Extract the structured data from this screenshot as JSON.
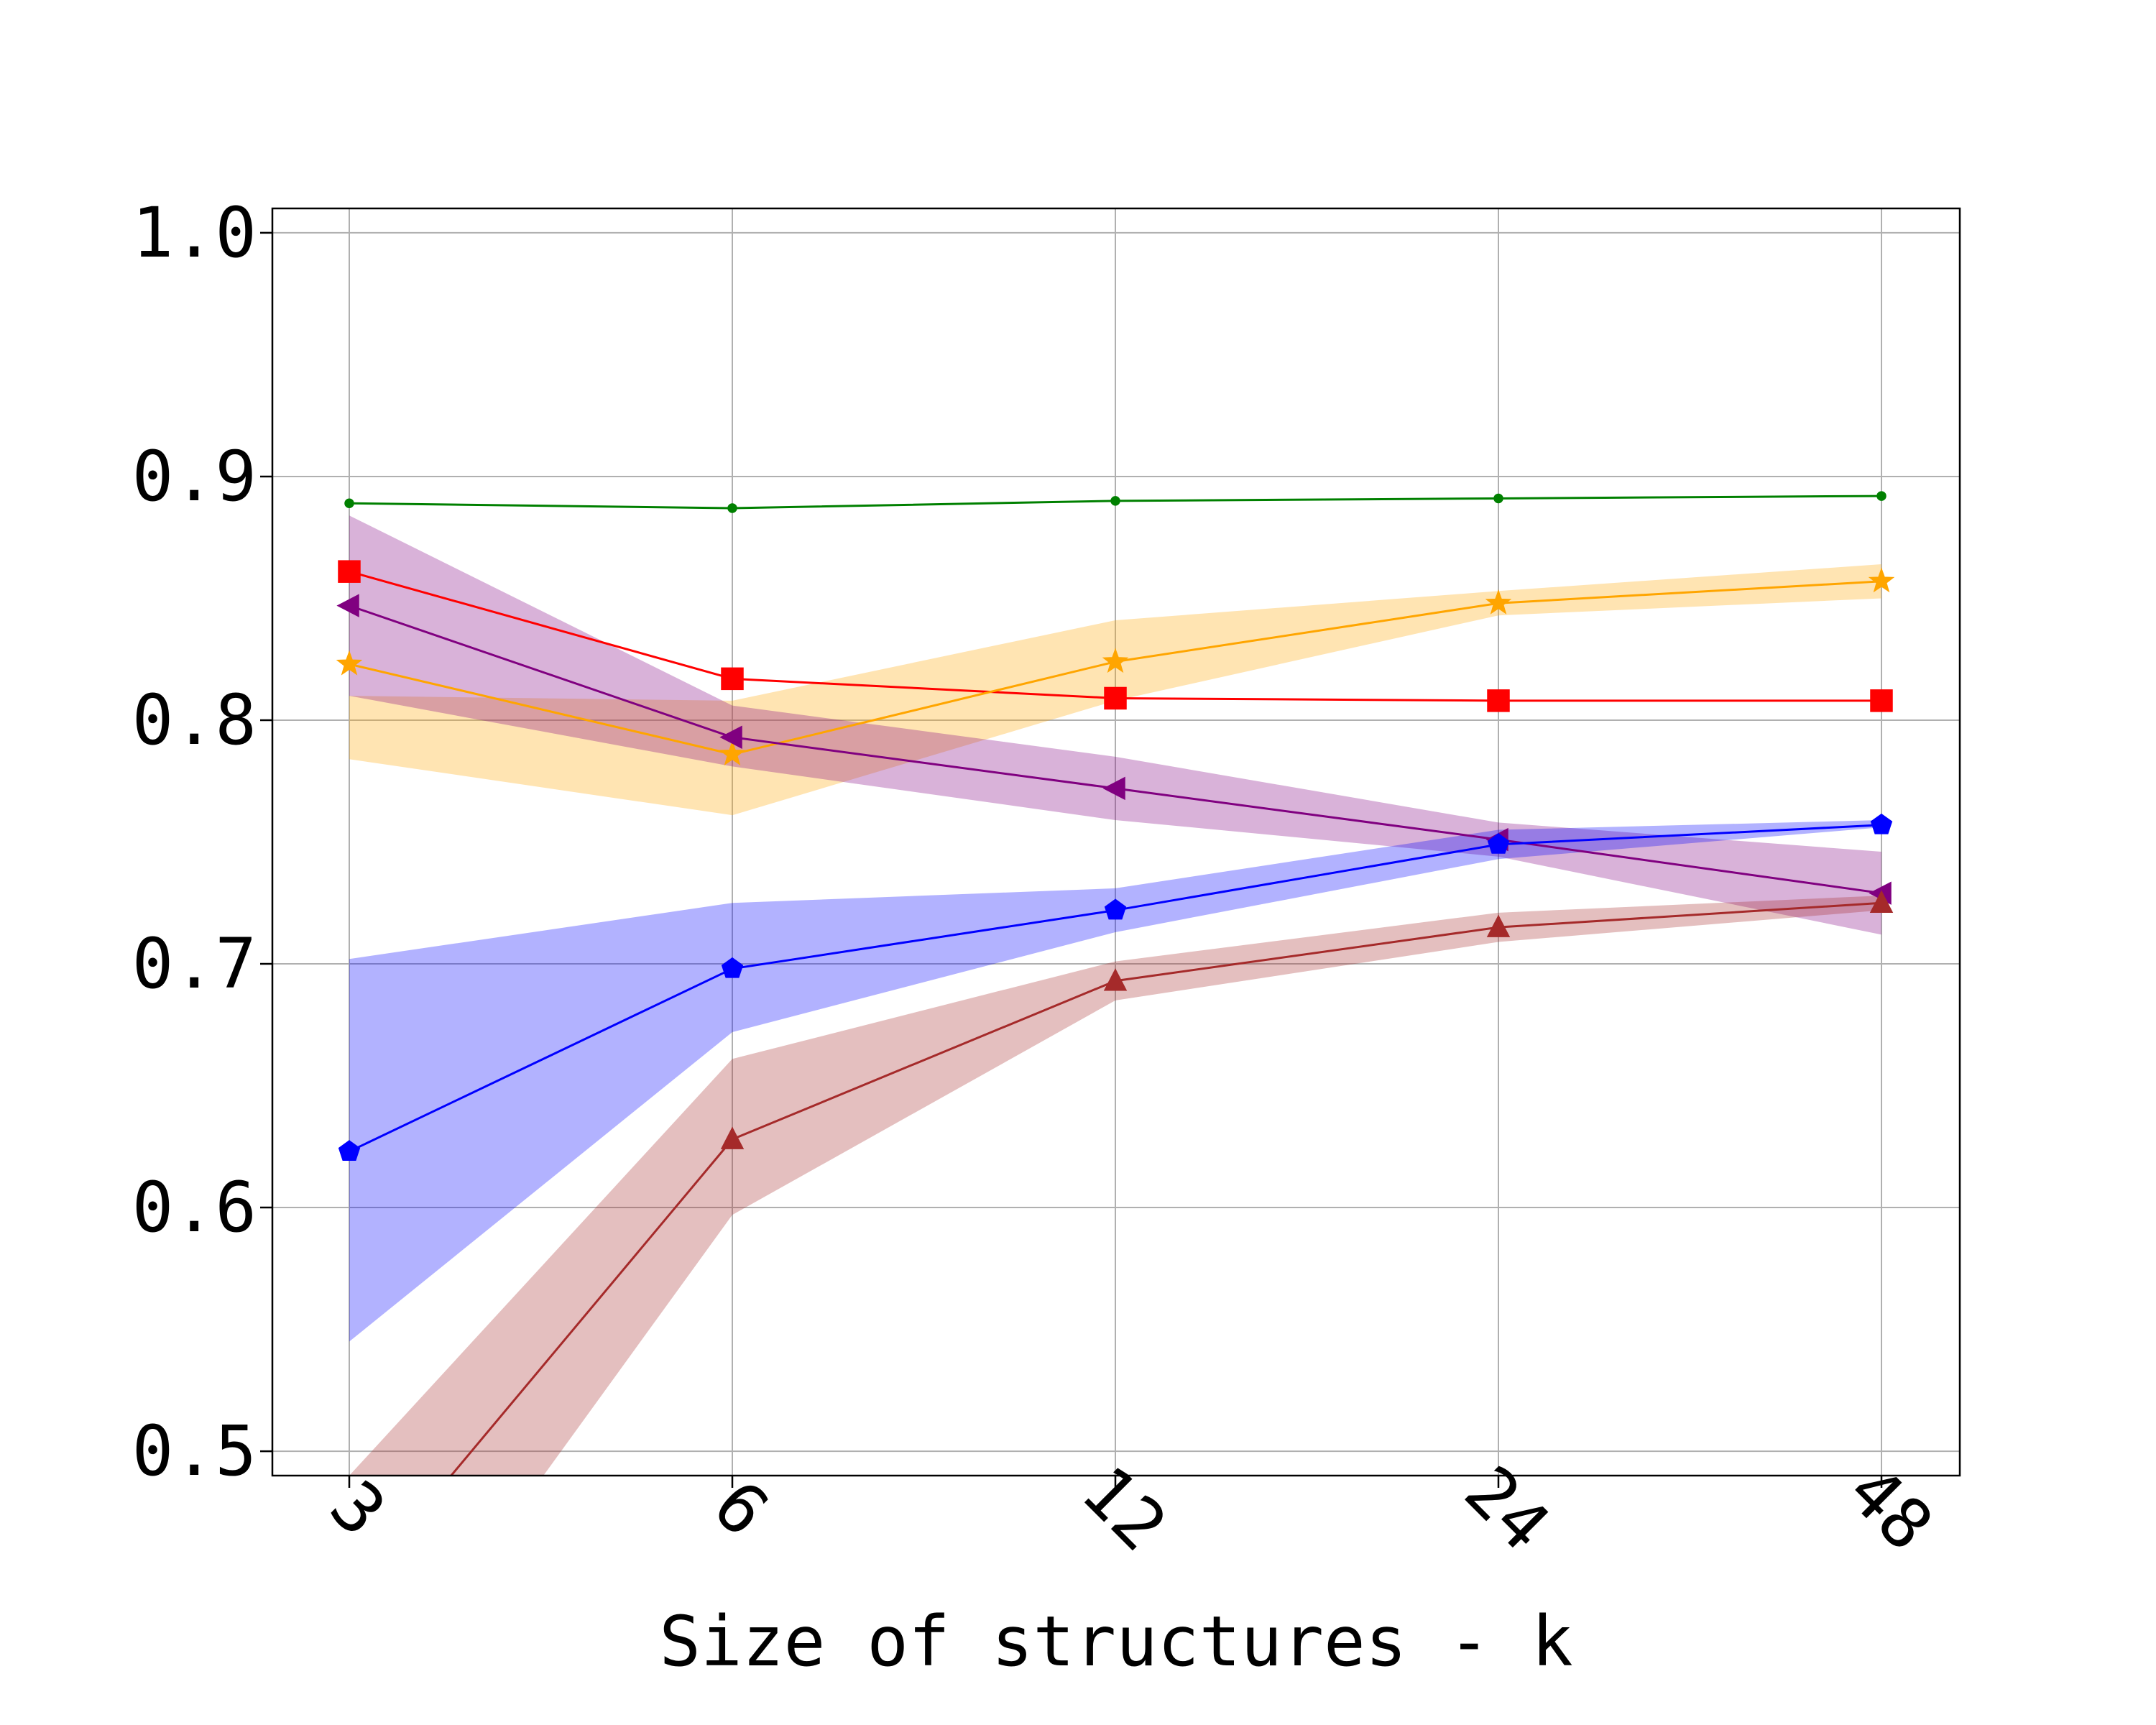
{
  "chart_data": {
    "type": "line",
    "title": "",
    "xlabel": "Size of structures - k",
    "ylabel": "",
    "x_categories": [
      "3",
      "6",
      "12",
      "24",
      "48"
    ],
    "y_ticks": [
      "0.5",
      "0.6",
      "0.7",
      "0.8",
      "0.9",
      "1.0"
    ],
    "ylim": [
      0.49,
      1.01
    ],
    "grid": true,
    "legend": "none",
    "series": [
      {
        "color": "#008000",
        "marker": "circle",
        "values": [
          0.889,
          0.887,
          0.89,
          0.891,
          0.892
        ]
      },
      {
        "color": "#ff0000",
        "marker": "square",
        "values": [
          0.861,
          0.817,
          0.809,
          0.808,
          0.808
        ]
      },
      {
        "color": "#ffa500",
        "marker": "star",
        "values": [
          0.823,
          0.786,
          0.824,
          0.848,
          0.857
        ],
        "band_low": [
          0.784,
          0.761,
          0.808,
          0.843,
          0.85
        ],
        "band_high": [
          0.81,
          0.808,
          0.841,
          0.853,
          0.864
        ]
      },
      {
        "color": "#800080",
        "marker": "triangle-left",
        "values": [
          0.847,
          0.793,
          0.772,
          0.751,
          0.729
        ],
        "band_low": [
          0.81,
          0.781,
          0.759,
          0.744,
          0.712
        ],
        "band_high": [
          0.884,
          0.806,
          0.785,
          0.758,
          0.746
        ]
      },
      {
        "color": "#0000ff",
        "marker": "pentagon",
        "values": [
          0.623,
          0.698,
          0.722,
          0.749,
          0.757
        ],
        "band_low": [
          0.545,
          0.672,
          0.713,
          0.743,
          0.756
        ],
        "band_high": [
          0.702,
          0.725,
          0.731,
          0.755,
          0.759
        ]
      },
      {
        "color": "#a52a2a",
        "marker": "triangle-up",
        "values": [
          0.44,
          0.628,
          0.693,
          0.715,
          0.725
        ],
        "band_low": [
          0.38,
          0.597,
          0.685,
          0.709,
          0.722
        ],
        "band_high": [
          0.49,
          0.661,
          0.701,
          0.721,
          0.728
        ]
      }
    ]
  }
}
